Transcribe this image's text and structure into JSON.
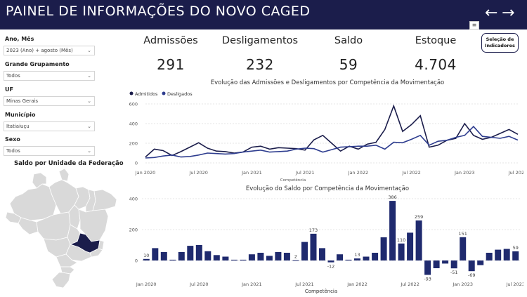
{
  "header": {
    "title": "PAINEL DE INFORMAÇÕES DO NOVO CAGED",
    "back_icon": "←",
    "forward_icon": "→",
    "bg_color": "#1b1d4b"
  },
  "selection_button": {
    "line1": "Seleção de",
    "line2": "Indicadores"
  },
  "filters": [
    {
      "label": "Ano, Mês",
      "value": "2023 (Ano) + agosto (Mês)"
    },
    {
      "label": "Grande Grupamento",
      "value": "Todos"
    },
    {
      "label": "UF",
      "value": "Minas Gerais"
    },
    {
      "label": "Município",
      "value": "Itatiaiuçu"
    },
    {
      "label": "Sexo",
      "value": "Todos"
    }
  ],
  "map": {
    "title": "Saldo por Unidade da Federação",
    "highlight_color": "#1b1d4b",
    "base_color": "#d9d9d9"
  },
  "kpis": [
    {
      "label": "Admissões",
      "value": "291"
    },
    {
      "label": "Desligamentos",
      "value": "232"
    },
    {
      "label": "Saldo",
      "value": "59"
    },
    {
      "label": "Estoque",
      "value": "4.704"
    }
  ],
  "chart_data": [
    {
      "type": "line",
      "title": "Evolução das Admissões e Desligamentos por Competência da Movimentação",
      "xlabel": "Competência",
      "ylabel": "",
      "ylim": [
        0,
        600
      ],
      "yticks": [
        0,
        200,
        400,
        600
      ],
      "xticks": [
        "Jan 2020",
        "Jul 2020",
        "Jan 2021",
        "Jul 2021",
        "Jan 2022",
        "Jul 2022",
        "Jan 2023",
        "Jul 2023"
      ],
      "legend_position": "top-left",
      "series": [
        {
          "name": "Admitidos",
          "color": "#1b1d4b",
          "values": [
            60,
            140,
            125,
            75,
            115,
            160,
            205,
            150,
            120,
            115,
            100,
            110,
            160,
            170,
            140,
            155,
            150,
            145,
            130,
            235,
            280,
            200,
            120,
            170,
            140,
            190,
            210,
            340,
            580,
            320,
            390,
            480,
            160,
            180,
            230,
            250,
            400,
            280,
            240,
            260,
            300,
            340,
            291
          ]
        },
        {
          "name": "Desligados",
          "color": "#2e3d8f",
          "values": [
            50,
            55,
            70,
            80,
            60,
            65,
            80,
            100,
            95,
            90,
            95,
            110,
            120,
            130,
            110,
            115,
            120,
            140,
            150,
            145,
            110,
            135,
            160,
            165,
            170,
            170,
            180,
            140,
            210,
            205,
            240,
            280,
            180,
            220,
            230,
            260,
            280,
            370,
            270,
            260,
            250,
            270,
            232
          ]
        }
      ]
    },
    {
      "type": "bar",
      "title": "Evolução do Saldo por Competência da Movimentação",
      "xlabel": "Competência",
      "ylabel": "",
      "ylim": [
        -100,
        400
      ],
      "yticks": [
        0,
        200,
        400
      ],
      "xticks": [
        "Jan 2020",
        "Jul 2020",
        "Jan 2021",
        "Jul 2021",
        "Jan 2022",
        "Jul 2022",
        "Jan 2023",
        "Jul 2023"
      ],
      "color": "#1f2a6e",
      "values": [
        10,
        80,
        55,
        5,
        55,
        95,
        100,
        60,
        35,
        25,
        5,
        5,
        40,
        50,
        30,
        55,
        50,
        2,
        120,
        173,
        80,
        -12,
        40,
        5,
        13,
        25,
        50,
        150,
        386,
        110,
        180,
        259,
        -93,
        -50,
        -20,
        -51,
        151,
        -69,
        -30,
        50,
        70,
        75,
        59
      ],
      "data_labels": {
        "0": "10",
        "17": "2",
        "19": "173",
        "21": "-12",
        "24": "13",
        "28": "386",
        "29": "110",
        "31": "259",
        "32": "-93",
        "35": "-51",
        "36": "151",
        "37": "-69",
        "42": "59"
      }
    }
  ]
}
